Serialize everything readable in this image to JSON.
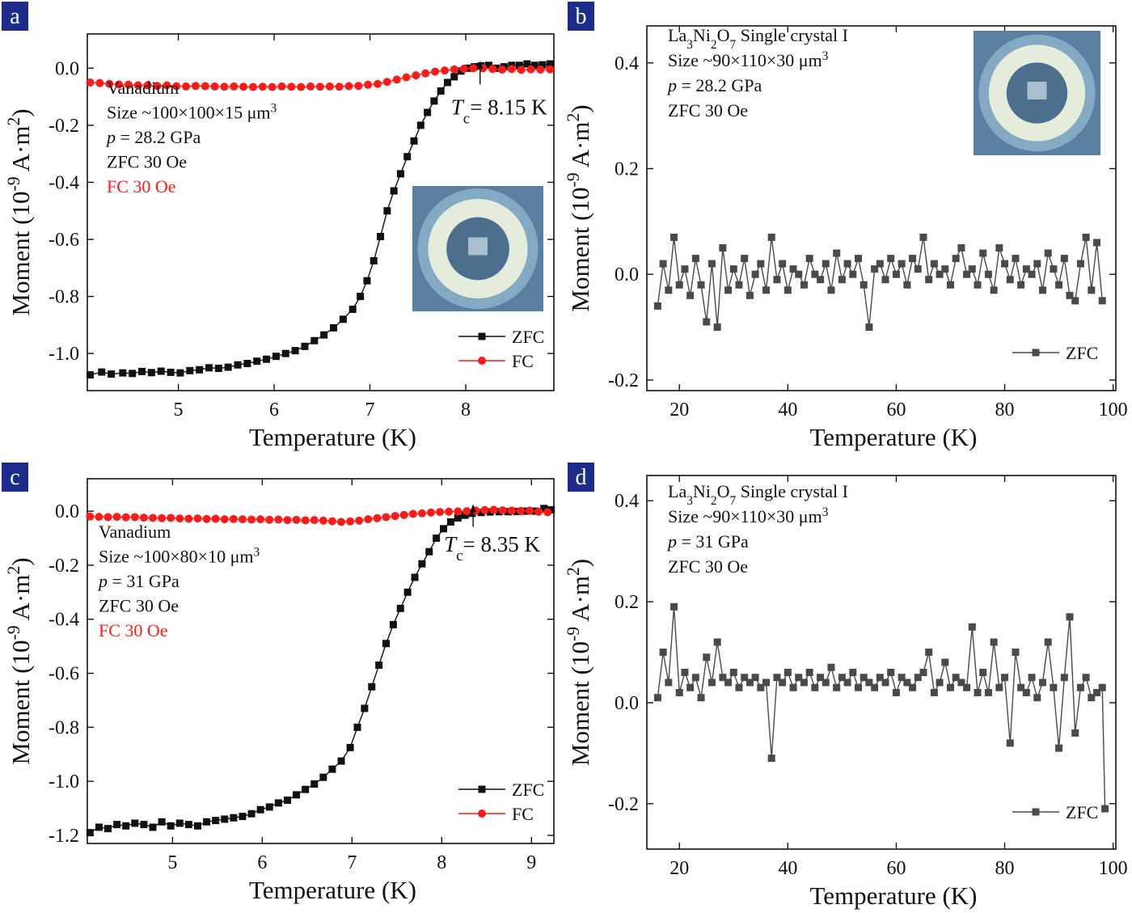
{
  "colors": {
    "zfc": "#111111",
    "fc": "#ff1a1a",
    "gray": "#4a4a4a",
    "panel_badge": "#1d2c8c",
    "red_text": "#ff1a1a",
    "inset_bg": "#5a7fa0"
  },
  "icons": {
    "zfc_marker": "filled-square",
    "fc_marker": "filled-circle",
    "inset": "diamond-anvil-cell-photo"
  },
  "chart_data": [
    {
      "panel": "a",
      "type": "scatter",
      "xlabel": "Temperature (K)",
      "ylabel": "Moment (10-9 A·m2)",
      "xlim": [
        4.05,
        8.92
      ],
      "ylim": [
        -1.13,
        0.12
      ],
      "xticks": [
        5,
        6,
        7,
        8
      ],
      "yticks": [
        0.0,
        -0.2,
        -0.4,
        -0.6,
        -0.8,
        -1.0
      ],
      "tick_labels_y": [
        "0.0",
        "-0.2",
        "-0.4",
        "-0.6",
        "-0.8",
        "-1.0"
      ],
      "legend": [
        "ZFC",
        "FC"
      ],
      "legend_position": "bottom-right",
      "annotations": [
        "Vanadium",
        "Size ~100×100×15 μm3",
        "p = 28.2 GPa",
        "ZFC 30 Oe",
        "FC 30 Oe"
      ],
      "tc_label": "Tc = 8.15 K",
      "tc_value": 8.15,
      "series": [
        {
          "name": "ZFC",
          "x": [
            4.08,
            4.2,
            4.3,
            4.42,
            4.52,
            4.62,
            4.72,
            4.82,
            4.92,
            5.02,
            5.12,
            5.22,
            5.32,
            5.42,
            5.52,
            5.62,
            5.72,
            5.82,
            5.92,
            6.02,
            6.12,
            6.22,
            6.32,
            6.42,
            6.52,
            6.62,
            6.72,
            6.82,
            6.9,
            6.97,
            7.04,
            7.11,
            7.18,
            7.25,
            7.32,
            7.39,
            7.46,
            7.53,
            7.6,
            7.67,
            7.74,
            7.81,
            7.88,
            7.95,
            8.02,
            8.09,
            8.16,
            8.24,
            8.32,
            8.4,
            8.48,
            8.56,
            8.64,
            8.72,
            8.8,
            8.88
          ],
          "y": [
            -1.075,
            -1.065,
            -1.072,
            -1.068,
            -1.07,
            -1.063,
            -1.067,
            -1.062,
            -1.066,
            -1.068,
            -1.06,
            -1.057,
            -1.05,
            -1.052,
            -1.048,
            -1.04,
            -1.035,
            -1.027,
            -1.02,
            -1.01,
            -1.0,
            -0.99,
            -0.975,
            -0.955,
            -0.935,
            -0.91,
            -0.88,
            -0.845,
            -0.8,
            -0.745,
            -0.675,
            -0.59,
            -0.5,
            -0.43,
            -0.37,
            -0.31,
            -0.255,
            -0.2,
            -0.155,
            -0.115,
            -0.08,
            -0.05,
            -0.03,
            -0.01,
            0.0,
            0.005,
            0.008,
            0.01,
            0.0,
            0.005,
            0.01,
            0.01,
            0.015,
            0.01,
            0.012,
            0.015
          ]
        },
        {
          "name": "FC",
          "x": [
            4.08,
            4.18,
            4.28,
            4.38,
            4.48,
            4.58,
            4.68,
            4.78,
            4.88,
            4.98,
            5.08,
            5.18,
            5.28,
            5.38,
            5.48,
            5.58,
            5.68,
            5.78,
            5.88,
            5.98,
            6.08,
            6.18,
            6.28,
            6.38,
            6.48,
            6.58,
            6.68,
            6.78,
            6.88,
            6.98,
            7.08,
            7.18,
            7.28,
            7.38,
            7.48,
            7.58,
            7.68,
            7.78,
            7.88,
            7.98,
            8.08,
            8.18,
            8.28,
            8.38,
            8.48,
            8.58,
            8.68,
            8.78,
            8.88
          ],
          "y": [
            -0.05,
            -0.052,
            -0.055,
            -0.057,
            -0.058,
            -0.06,
            -0.06,
            -0.062,
            -0.06,
            -0.063,
            -0.064,
            -0.062,
            -0.063,
            -0.064,
            -0.065,
            -0.064,
            -0.065,
            -0.066,
            -0.065,
            -0.066,
            -0.064,
            -0.065,
            -0.066,
            -0.064,
            -0.065,
            -0.064,
            -0.065,
            -0.063,
            -0.062,
            -0.058,
            -0.055,
            -0.048,
            -0.04,
            -0.032,
            -0.025,
            -0.018,
            -0.012,
            -0.008,
            -0.004,
            -0.002,
            0.0,
            0.0,
            -0.003,
            -0.005,
            -0.003,
            -0.006,
            -0.004,
            -0.005,
            -0.004
          ]
        }
      ]
    },
    {
      "panel": "b",
      "type": "scatter",
      "xlabel": "Temperature (K)",
      "ylabel": "Moment (10-9 A·m2)",
      "xlim": [
        14,
        100.5
      ],
      "ylim": [
        -0.22,
        0.47
      ],
      "xticks": [
        20,
        40,
        60,
        80,
        100
      ],
      "yticks": [
        -0.2,
        0.0,
        0.2,
        0.4
      ],
      "tick_labels_y": [
        "-0.2",
        "0.0",
        "0.2",
        "0.4"
      ],
      "legend": [
        "ZFC"
      ],
      "legend_position": "bottom-right",
      "annotations": [
        "La3Ni2O7 Single crystal I",
        "Size ~90×110×30 μm3",
        "p = 28.2 GPa",
        "ZFC 30 Oe"
      ],
      "series": [
        {
          "name": "ZFC",
          "x": [
            16,
            17,
            18,
            19,
            20,
            21,
            22,
            23,
            24,
            25,
            26,
            27,
            28,
            29,
            30,
            31,
            32,
            33,
            34,
            35,
            36,
            37,
            38,
            39,
            40,
            41,
            42,
            43,
            44,
            45,
            46,
            47,
            48,
            49,
            50,
            51,
            52,
            53,
            54,
            55,
            56,
            57,
            58,
            59,
            60,
            61,
            62,
            63,
            64,
            65,
            66,
            67,
            68,
            69,
            70,
            71,
            72,
            73,
            74,
            75,
            76,
            77,
            78,
            79,
            80,
            81,
            82,
            83,
            84,
            85,
            86,
            87,
            88,
            89,
            90,
            91,
            92,
            93,
            94,
            95,
            96,
            97,
            98
          ],
          "y": [
            -0.06,
            0.02,
            -0.03,
            0.07,
            -0.02,
            0.01,
            -0.04,
            0.03,
            -0.02,
            -0.09,
            0.02,
            -0.1,
            0.05,
            -0.03,
            0.01,
            -0.02,
            0.03,
            -0.04,
            0.0,
            0.02,
            -0.03,
            0.07,
            -0.01,
            0.02,
            -0.03,
            0.01,
            0.0,
            -0.02,
            0.03,
            0.0,
            -0.01,
            0.02,
            -0.03,
            0.04,
            -0.01,
            0.02,
            0.0,
            0.03,
            -0.02,
            -0.1,
            0.01,
            0.02,
            -0.01,
            0.03,
            0.0,
            0.02,
            -0.02,
            0.03,
            0.01,
            0.07,
            -0.01,
            0.02,
            0.0,
            0.01,
            -0.02,
            0.03,
            0.05,
            0.0,
            0.01,
            -0.02,
            0.04,
            0.0,
            -0.03,
            0.05,
            0.02,
            -0.01,
            0.03,
            -0.02,
            0.01,
            0.0,
            0.02,
            -0.03,
            0.04,
            0.01,
            -0.02,
            0.03,
            -0.04,
            -0.05,
            0.02,
            0.07,
            -0.03,
            0.06,
            -0.05
          ]
        }
      ]
    },
    {
      "panel": "c",
      "type": "scatter",
      "xlabel": "Temperature (K)",
      "ylabel": "Moment (10-9 A·m2)",
      "xlim": [
        4.05,
        9.25
      ],
      "ylim": [
        -1.23,
        0.12
      ],
      "xticks": [
        5,
        6,
        7,
        8,
        9
      ],
      "yticks": [
        0.0,
        -0.2,
        -0.4,
        -0.6,
        -0.8,
        -1.0,
        -1.2
      ],
      "tick_labels_y": [
        "0.0",
        "-0.2",
        "-0.4",
        "-0.6",
        "-0.8",
        "-1.0",
        "-1.2"
      ],
      "legend": [
        "ZFC",
        "FC"
      ],
      "legend_position": "bottom-right",
      "annotations": [
        "Vanadium",
        "Size ~100×80×10 μm3",
        "p = 31 GPa",
        "ZFC 30 Oe",
        "FC 30 Oe"
      ],
      "tc_label": "Tc = 8.35 K",
      "tc_value": 8.35,
      "series": [
        {
          "name": "ZFC",
          "x": [
            4.08,
            4.18,
            4.28,
            4.38,
            4.48,
            4.58,
            4.68,
            4.78,
            4.88,
            4.98,
            5.08,
            5.18,
            5.28,
            5.38,
            5.48,
            5.58,
            5.68,
            5.78,
            5.88,
            5.98,
            6.08,
            6.18,
            6.28,
            6.38,
            6.48,
            6.58,
            6.68,
            6.78,
            6.88,
            6.98,
            7.06,
            7.14,
            7.22,
            7.3,
            7.38,
            7.46,
            7.54,
            7.62,
            7.7,
            7.78,
            7.86,
            7.94,
            8.02,
            8.1,
            8.18,
            8.26,
            8.34,
            8.44,
            8.54,
            8.64,
            8.74,
            8.84,
            8.94,
            9.04,
            9.14,
            9.22
          ],
          "y": [
            -1.19,
            -1.17,
            -1.175,
            -1.16,
            -1.165,
            -1.155,
            -1.16,
            -1.17,
            -1.15,
            -1.165,
            -1.155,
            -1.16,
            -1.165,
            -1.15,
            -1.145,
            -1.14,
            -1.135,
            -1.13,
            -1.12,
            -1.105,
            -1.095,
            -1.08,
            -1.07,
            -1.05,
            -1.03,
            -1.01,
            -0.985,
            -0.955,
            -0.925,
            -0.875,
            -0.8,
            -0.73,
            -0.65,
            -0.57,
            -0.49,
            -0.42,
            -0.36,
            -0.3,
            -0.245,
            -0.195,
            -0.15,
            -0.1,
            -0.065,
            -0.04,
            -0.025,
            -0.015,
            -0.008,
            -0.005,
            -0.003,
            -0.002,
            -0.002,
            -0.001,
            0.0,
            0.0,
            0.01,
            0.005
          ]
        },
        {
          "name": "FC",
          "x": [
            4.08,
            4.18,
            4.28,
            4.38,
            4.48,
            4.58,
            4.68,
            4.78,
            4.88,
            4.98,
            5.08,
            5.18,
            5.28,
            5.38,
            5.48,
            5.58,
            5.68,
            5.78,
            5.88,
            5.98,
            6.08,
            6.18,
            6.28,
            6.38,
            6.48,
            6.58,
            6.68,
            6.78,
            6.88,
            6.98,
            7.08,
            7.18,
            7.28,
            7.38,
            7.48,
            7.58,
            7.68,
            7.78,
            7.88,
            7.98,
            8.08,
            8.18,
            8.28,
            8.38,
            8.48,
            8.58,
            8.68,
            8.78,
            8.88,
            8.98,
            9.08,
            9.18
          ],
          "y": [
            -0.02,
            -0.021,
            -0.022,
            -0.021,
            -0.023,
            -0.022,
            -0.024,
            -0.025,
            -0.026,
            -0.025,
            -0.027,
            -0.028,
            -0.027,
            -0.029,
            -0.028,
            -0.03,
            -0.029,
            -0.03,
            -0.031,
            -0.03,
            -0.032,
            -0.031,
            -0.033,
            -0.032,
            -0.034,
            -0.033,
            -0.035,
            -0.037,
            -0.04,
            -0.038,
            -0.035,
            -0.03,
            -0.026,
            -0.022,
            -0.018,
            -0.014,
            -0.01,
            -0.008,
            -0.005,
            -0.003,
            -0.002,
            -0.001,
            0.0,
            0.002,
            0.004,
            0.005,
            0.003,
            0.002,
            0.001,
            0.002,
            -0.002,
            -0.004
          ]
        }
      ]
    },
    {
      "panel": "d",
      "type": "scatter",
      "xlabel": "Temperature (K)",
      "ylabel": "Moment (10-9 A·m2)",
      "xlim": [
        14,
        100.5
      ],
      "ylim": [
        -0.29,
        0.45
      ],
      "xticks": [
        20,
        40,
        60,
        80,
        100
      ],
      "yticks": [
        -0.2,
        0.0,
        0.2,
        0.4
      ],
      "tick_labels_y": [
        "-0.2",
        "0.0",
        "0.2",
        "0.4"
      ],
      "legend": [
        "ZFC"
      ],
      "legend_position": "bottom-right",
      "annotations": [
        "La3Ni2O7 Single crystal I",
        "Size ~90×110×30 μm3",
        "p = 31 GPa",
        "ZFC 30 Oe"
      ],
      "series": [
        {
          "name": "ZFC",
          "x": [
            16,
            17,
            18,
            19,
            20,
            21,
            22,
            23,
            24,
            25,
            26,
            27,
            28,
            29,
            30,
            31,
            32,
            33,
            34,
            35,
            36,
            37,
            38,
            39,
            40,
            41,
            42,
            43,
            44,
            45,
            46,
            47,
            48,
            49,
            50,
            51,
            52,
            53,
            54,
            55,
            56,
            57,
            58,
            59,
            60,
            61,
            62,
            63,
            64,
            65,
            66,
            67,
            68,
            69,
            70,
            71,
            72,
            73,
            74,
            75,
            76,
            77,
            78,
            79,
            80,
            81,
            82,
            83,
            84,
            85,
            86,
            87,
            88,
            89,
            90,
            91,
            92,
            93,
            94,
            95,
            96,
            97,
            98,
            98.5
          ],
          "y": [
            0.01,
            0.1,
            0.04,
            0.19,
            0.02,
            0.06,
            0.03,
            0.05,
            0.01,
            0.09,
            0.04,
            0.12,
            0.05,
            0.04,
            0.06,
            0.03,
            0.05,
            0.04,
            0.05,
            0.03,
            0.04,
            -0.11,
            0.05,
            0.04,
            0.06,
            0.03,
            0.05,
            0.04,
            0.06,
            0.03,
            0.05,
            0.04,
            0.07,
            0.03,
            0.05,
            0.04,
            0.06,
            0.03,
            0.05,
            0.04,
            0.03,
            0.05,
            0.04,
            0.06,
            0.02,
            0.05,
            0.04,
            0.03,
            0.05,
            0.06,
            0.1,
            0.02,
            0.04,
            0.08,
            0.03,
            0.05,
            0.04,
            0.03,
            0.15,
            0.02,
            0.06,
            0.02,
            0.12,
            0.03,
            0.05,
            -0.08,
            0.1,
            0.03,
            0.02,
            0.05,
            0.01,
            0.04,
            0.12,
            0.03,
            -0.09,
            0.05,
            0.17,
            -0.06,
            0.03,
            0.05,
            0.01,
            0.02,
            0.03,
            -0.21
          ]
        }
      ]
    }
  ]
}
